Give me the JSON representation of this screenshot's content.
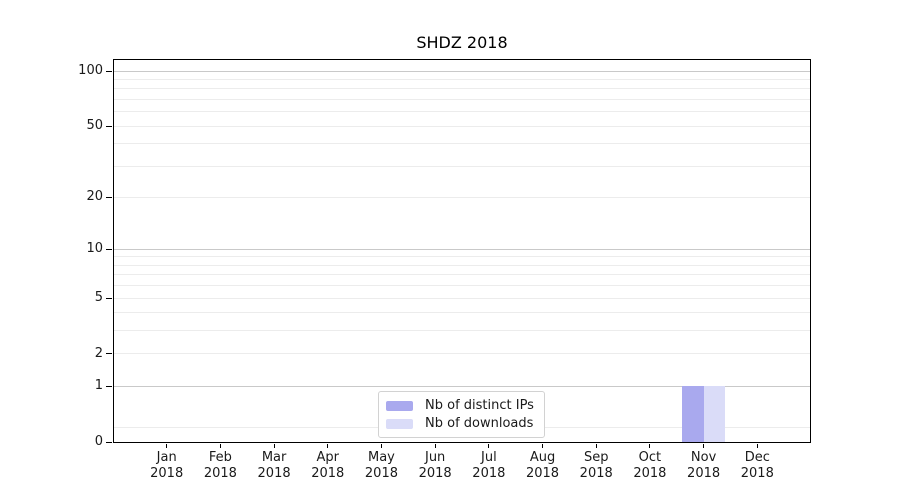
{
  "title": "SHDZ 2018",
  "chart_data": {
    "type": "bar",
    "title": "SHDZ 2018",
    "x_months": [
      "Jan",
      "Feb",
      "Mar",
      "Apr",
      "May",
      "Jun",
      "Jul",
      "Aug",
      "Sep",
      "Oct",
      "Nov",
      "Dec"
    ],
    "x_year": "2018",
    "series": [
      {
        "name": "Nb of distinct IPs",
        "color": "#a9a9ee",
        "values": [
          0,
          0,
          0,
          0,
          0,
          0,
          0,
          0,
          0,
          0,
          1,
          0
        ]
      },
      {
        "name": "Nb of downloads",
        "color": "#dadcf8",
        "values": [
          0,
          0,
          0,
          0,
          0,
          0,
          0,
          0,
          0,
          0,
          1,
          0
        ]
      }
    ],
    "y_axis": {
      "scale": "symlog-log1p",
      "tick_values": [
        0,
        1,
        2,
        5,
        10,
        20,
        50,
        100
      ],
      "major_gridlines": [
        1,
        10,
        100
      ],
      "minor_gridlines": [
        0.2,
        2,
        3,
        4,
        5,
        6,
        7,
        8,
        9,
        20,
        30,
        40,
        50,
        60,
        70,
        80,
        90
      ],
      "max": 115
    },
    "legend_position": "lower center",
    "colors": {
      "major_grid": "#c9c9c9",
      "minor_grid": "#ececec",
      "axis": "#000000",
      "text": "#1a1a1a",
      "background": "#ffffff"
    }
  }
}
